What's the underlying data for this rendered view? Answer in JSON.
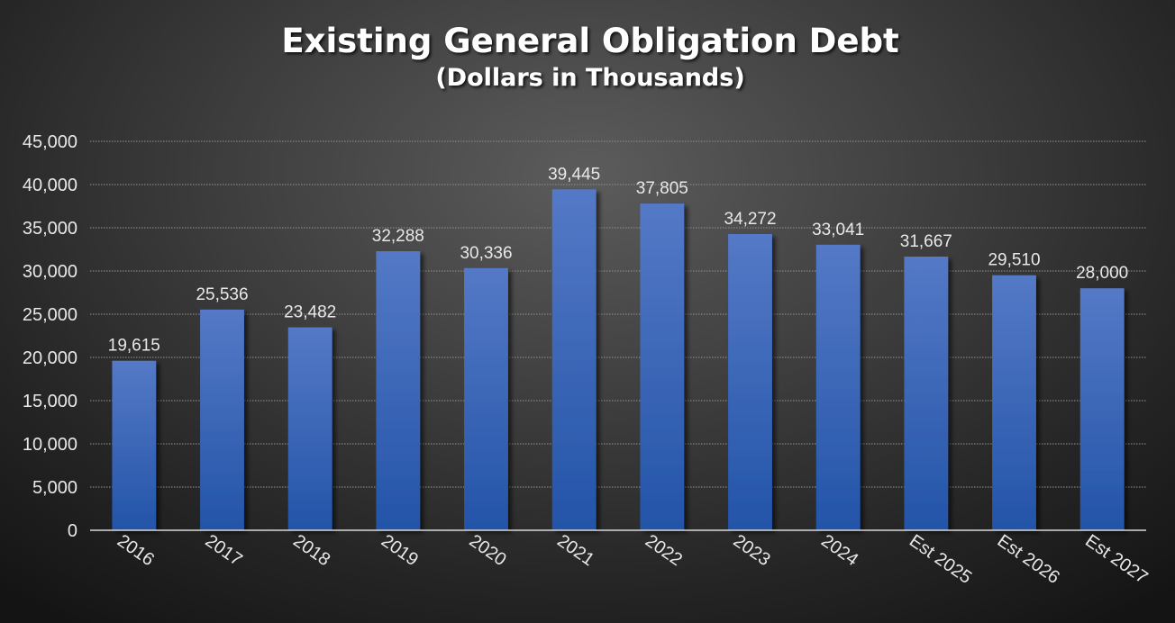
{
  "chart_data": {
    "type": "bar",
    "title": "Existing General Obligation Debt",
    "subtitle": "(Dollars in Thousands)",
    "categories": [
      "2016",
      "2017",
      "2018",
      "2019",
      "2020",
      "2021",
      "2022",
      "2023",
      "2024",
      "Est 2025",
      "Est 2026",
      "Est 2027"
    ],
    "values": [
      19615,
      25536,
      23482,
      32288,
      30336,
      39445,
      37805,
      34272,
      33041,
      31667,
      29510,
      28000
    ],
    "data_labels": [
      "19,615",
      "25,536",
      "23,482",
      "32,288",
      "30,336",
      "39,445",
      "37,805",
      "34,272",
      "33,041",
      "31,667",
      "29,510",
      "28,000"
    ],
    "y_ticks": [
      "0",
      "5,000",
      "10,000",
      "15,000",
      "20,000",
      "25,000",
      "30,000",
      "35,000",
      "40,000",
      "45,000"
    ],
    "ylim": [
      0,
      45000
    ],
    "grid": true,
    "legend": "none",
    "colors": {
      "bar_top": "#5479c6",
      "bar_bottom": "#2354a8",
      "text": "#e8e8e8",
      "gridline": "#8a8a8a"
    }
  }
}
